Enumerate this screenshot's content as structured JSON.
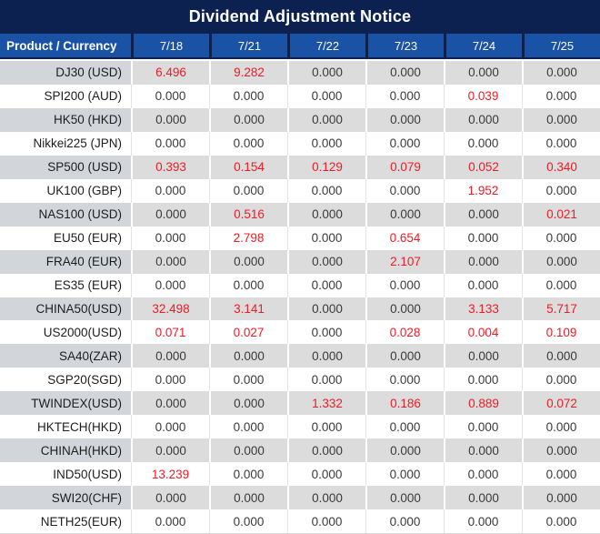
{
  "title": "Dividend Adjustment Notice",
  "colors": {
    "title_bg": "#0D2150",
    "header_bg": "#1A52A6",
    "gray_product_bg": "#D2D6DB",
    "gray_value_bg": "#DCDCDC",
    "white_row_separator": "#E4E4E4",
    "product_text": "#1D1D1D",
    "zero_text": "#3A3A3A",
    "nonzero_text": "#ED1C24"
  },
  "table": {
    "product_header": "Product / Currency",
    "date_columns": [
      "7/18",
      "7/21",
      "7/22",
      "7/23",
      "7/24",
      "7/25"
    ],
    "rows": [
      {
        "product": "DJ30 (USD)",
        "values": [
          "6.496",
          "9.282",
          "0.000",
          "0.000",
          "0.000",
          "0.000"
        ]
      },
      {
        "product": "SPI200 (AUD)",
        "values": [
          "0.000",
          "0.000",
          "0.000",
          "0.000",
          "0.039",
          "0.000"
        ]
      },
      {
        "product": "HK50 (HKD)",
        "values": [
          "0.000",
          "0.000",
          "0.000",
          "0.000",
          "0.000",
          "0.000"
        ]
      },
      {
        "product": "Nikkei225 (JPN)",
        "values": [
          "0.000",
          "0.000",
          "0.000",
          "0.000",
          "0.000",
          "0.000"
        ]
      },
      {
        "product": "SP500 (USD)",
        "values": [
          "0.393",
          "0.154",
          "0.129",
          "0.079",
          "0.052",
          "0.340"
        ]
      },
      {
        "product": "UK100 (GBP)",
        "values": [
          "0.000",
          "0.000",
          "0.000",
          "0.000",
          "1.952",
          "0.000"
        ]
      },
      {
        "product": "NAS100 (USD)",
        "values": [
          "0.000",
          "0.516",
          "0.000",
          "0.000",
          "0.000",
          "0.021"
        ]
      },
      {
        "product": "EU50 (EUR)",
        "values": [
          "0.000",
          "2.798",
          "0.000",
          "0.654",
          "0.000",
          "0.000"
        ]
      },
      {
        "product": "FRA40 (EUR)",
        "values": [
          "0.000",
          "0.000",
          "0.000",
          "2.107",
          "0.000",
          "0.000"
        ]
      },
      {
        "product": "ES35 (EUR)",
        "values": [
          "0.000",
          "0.000",
          "0.000",
          "0.000",
          "0.000",
          "0.000"
        ]
      },
      {
        "product": "CHINA50(USD)",
        "values": [
          "32.498",
          "3.141",
          "0.000",
          "0.000",
          "3.133",
          "5.717"
        ]
      },
      {
        "product": "US2000(USD)",
        "values": [
          "0.071",
          "0.027",
          "0.000",
          "0.028",
          "0.004",
          "0.109"
        ]
      },
      {
        "product": "SA40(ZAR)",
        "values": [
          "0.000",
          "0.000",
          "0.000",
          "0.000",
          "0.000",
          "0.000"
        ]
      },
      {
        "product": "SGP20(SGD)",
        "values": [
          "0.000",
          "0.000",
          "0.000",
          "0.000",
          "0.000",
          "0.000"
        ]
      },
      {
        "product": "TWINDEX(USD)",
        "values": [
          "0.000",
          "0.000",
          "1.332",
          "0.186",
          "0.889",
          "0.072"
        ]
      },
      {
        "product": "HKTECH(HKD)",
        "values": [
          "0.000",
          "0.000",
          "0.000",
          "0.000",
          "0.000",
          "0.000"
        ]
      },
      {
        "product": "CHINAH(HKD)",
        "values": [
          "0.000",
          "0.000",
          "0.000",
          "0.000",
          "0.000",
          "0.000"
        ]
      },
      {
        "product": "IND50(USD)",
        "values": [
          "13.239",
          "0.000",
          "0.000",
          "0.000",
          "0.000",
          "0.000"
        ]
      },
      {
        "product": "SWI20(CHF)",
        "values": [
          "0.000",
          "0.000",
          "0.000",
          "0.000",
          "0.000",
          "0.000"
        ]
      },
      {
        "product": "NETH25(EUR)",
        "values": [
          "0.000",
          "0.000",
          "0.000",
          "0.000",
          "0.000",
          "0.000"
        ]
      }
    ]
  }
}
